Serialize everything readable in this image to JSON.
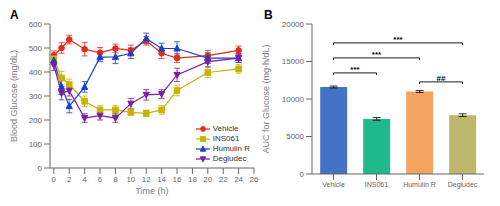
{
  "chart_data": [
    {
      "type": "line",
      "title": "A",
      "x": [
        0,
        1,
        2,
        4,
        6,
        8,
        10,
        12,
        14,
        16,
        20,
        24
      ],
      "series": [
        {
          "name": "Vehicle",
          "color": "#E8281A",
          "marker": "circle",
          "values": [
            470,
            500,
            535,
            495,
            480,
            498,
            490,
            530,
            478,
            458,
            468,
            490
          ],
          "errors": [
            18,
            22,
            18,
            28,
            22,
            18,
            22,
            18,
            22,
            18,
            22,
            18
          ]
        },
        {
          "name": "INS061",
          "color": "#C8B400",
          "marker": "square",
          "values": [
            455,
            375,
            348,
            278,
            242,
            242,
            232,
            228,
            242,
            323,
            398,
            413
          ],
          "errors": [
            18,
            28,
            22,
            22,
            18,
            18,
            13,
            13,
            18,
            22,
            22,
            18
          ]
        },
        {
          "name": "Humulin R",
          "color": "#1A3FCC",
          "marker": "triangle_up",
          "values": [
            448,
            338,
            258,
            338,
            462,
            463,
            478,
            540,
            498,
            498,
            458,
            458
          ],
          "errors": [
            18,
            32,
            28,
            22,
            18,
            28,
            22,
            22,
            22,
            28,
            22,
            18
          ]
        },
        {
          "name": "Degludec",
          "color": "#7B1FA2",
          "marker": "triangle_down",
          "values": [
            428,
            312,
            322,
            208,
            218,
            208,
            268,
            305,
            308,
            388,
            443,
            458
          ],
          "errors": [
            22,
            28,
            22,
            18,
            18,
            18,
            22,
            22,
            18,
            28,
            22,
            18
          ]
        }
      ],
      "xlabel": "Time (h)",
      "ylabel": "Blood Glucose (mg/dL)",
      "xlim": [
        -0.5,
        26
      ],
      "ylim": [
        0,
        600
      ],
      "xticks": [
        0,
        2,
        4,
        6,
        8,
        10,
        12,
        14,
        16,
        18,
        20,
        22,
        24,
        26
      ],
      "yticks": [
        0,
        100,
        200,
        300,
        400,
        500,
        600
      ],
      "legend": "lower right",
      "grid": false
    },
    {
      "type": "bar",
      "title": "B",
      "categories": [
        "Vehicle",
        "INS061",
        "Humulin R",
        "Degludec"
      ],
      "values": [
        11600,
        7350,
        11000,
        7850
      ],
      "errors": [
        130,
        180,
        130,
        180
      ],
      "colors": [
        "#4472C4",
        "#1EBA8C",
        "#F4A460",
        "#BDB76B"
      ],
      "ylabel": "AUC for Glucose (mg·h/dL)",
      "ylim": [
        0,
        20000
      ],
      "yticks": [
        0,
        5000,
        10000,
        15000,
        20000
      ],
      "annotations": [
        {
          "label": "***",
          "from": "Vehicle",
          "to": "INS061",
          "y": 13200
        },
        {
          "label": "***",
          "from": "Vehicle",
          "to": "Humulin R",
          "y": 15200
        },
        {
          "label": "***",
          "from": "Vehicle",
          "to": "Degludec",
          "y": 17200
        },
        {
          "label": "##",
          "from": "Humulin R",
          "to": "Degludec",
          "y": 12000
        }
      ],
      "grid": false
    }
  ]
}
